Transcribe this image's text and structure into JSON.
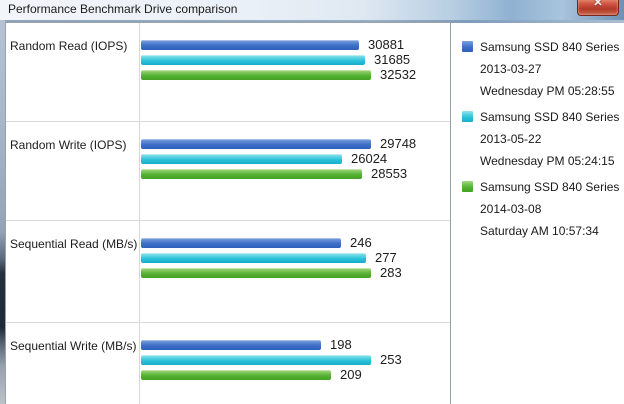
{
  "window": {
    "title": "Performance Benchmark Drive comparison",
    "close_glyph": "✕"
  },
  "legend": {
    "items": [
      {
        "name": "Samsung SSD 840 Series",
        "date": "2013-03-27",
        "time": "Wednesday PM 05:28:55"
      },
      {
        "name": "Samsung SSD 840 Series",
        "date": "2013-05-22",
        "time": "Wednesday PM 05:24:15"
      },
      {
        "name": "Samsung SSD 840 Series",
        "date": "2014-03-08",
        "time": "Saturday AM 10:57:34"
      }
    ]
  },
  "chart_data": {
    "type": "bar",
    "orientation": "horizontal",
    "value_labels": true,
    "scaling": "each category scaled to its own maximum",
    "categories": [
      "Random Read (IOPS)",
      "Random Write (IOPS)",
      "Sequential Read (MB/s)",
      "Sequential Write (MB/s)"
    ],
    "series": [
      {
        "name": "Samsung SSD 840 Series 2013-03-27",
        "color": "#3f70c8",
        "color_light": "#7ba0de",
        "color_dark": "#2e5fba",
        "values": [
          30881,
          29748,
          246,
          198
        ]
      },
      {
        "name": "Samsung SSD 840 Series 2013-05-22",
        "color": "#2cc3d8",
        "color_light": "#93e4ec",
        "color_dark": "#17adca",
        "values": [
          31685,
          26024,
          277,
          253
        ]
      },
      {
        "name": "Samsung SSD 840 Series 2014-03-08",
        "color": "#56b235",
        "color_light": "#a5d87e",
        "color_dark": "#45a122",
        "values": [
          32532,
          28553,
          283,
          209
        ]
      }
    ]
  },
  "colors": {
    "close_button_red": "#cf5342",
    "panel_border": "#98a0a8",
    "separator": "#dadada"
  }
}
